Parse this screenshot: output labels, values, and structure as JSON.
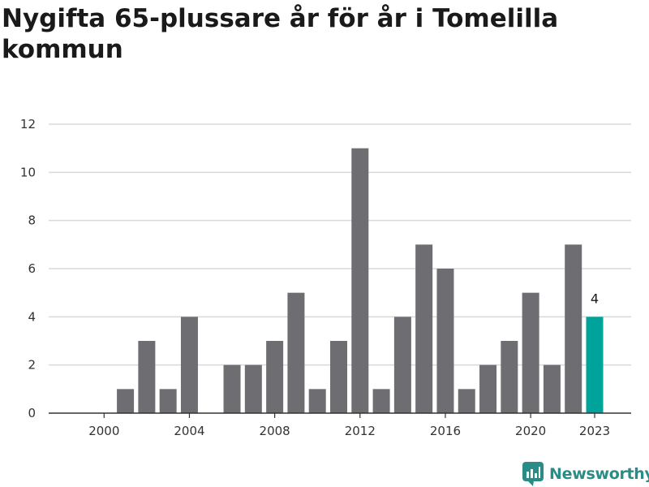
{
  "title": "Nygifta 65-plussare år för år i Tomelilla kommun",
  "brand": {
    "name": "Newsworthy",
    "icon": "newsworthy-logo-icon"
  },
  "colors": {
    "bar": "#6e6d72",
    "highlight": "#00a39a",
    "grid": "#d9d9d9",
    "brand": "#2a8c86"
  },
  "chart_data": {
    "type": "bar",
    "title": "Nygifta 65-plussare år för år i Tomelilla kommun",
    "xlabel": "",
    "ylabel": "",
    "x": [
      1999,
      2000,
      2001,
      2002,
      2003,
      2004,
      2005,
      2006,
      2007,
      2008,
      2009,
      2010,
      2011,
      2012,
      2013,
      2014,
      2015,
      2016,
      2017,
      2018,
      2019,
      2020,
      2021,
      2022,
      2023
    ],
    "values": [
      0,
      0,
      1,
      3,
      1,
      4,
      0,
      2,
      2,
      3,
      5,
      1,
      3,
      11,
      1,
      4,
      7,
      6,
      1,
      2,
      3,
      5,
      2,
      7,
      4
    ],
    "highlight_index": 24,
    "highlight_label": "4",
    "x_ticks": [
      2000,
      2004,
      2008,
      2012,
      2016,
      2020,
      2023
    ],
    "y_ticks": [
      0,
      2,
      4,
      6,
      8,
      10,
      12
    ],
    "ylim": [
      0,
      12
    ],
    "grid": true
  }
}
